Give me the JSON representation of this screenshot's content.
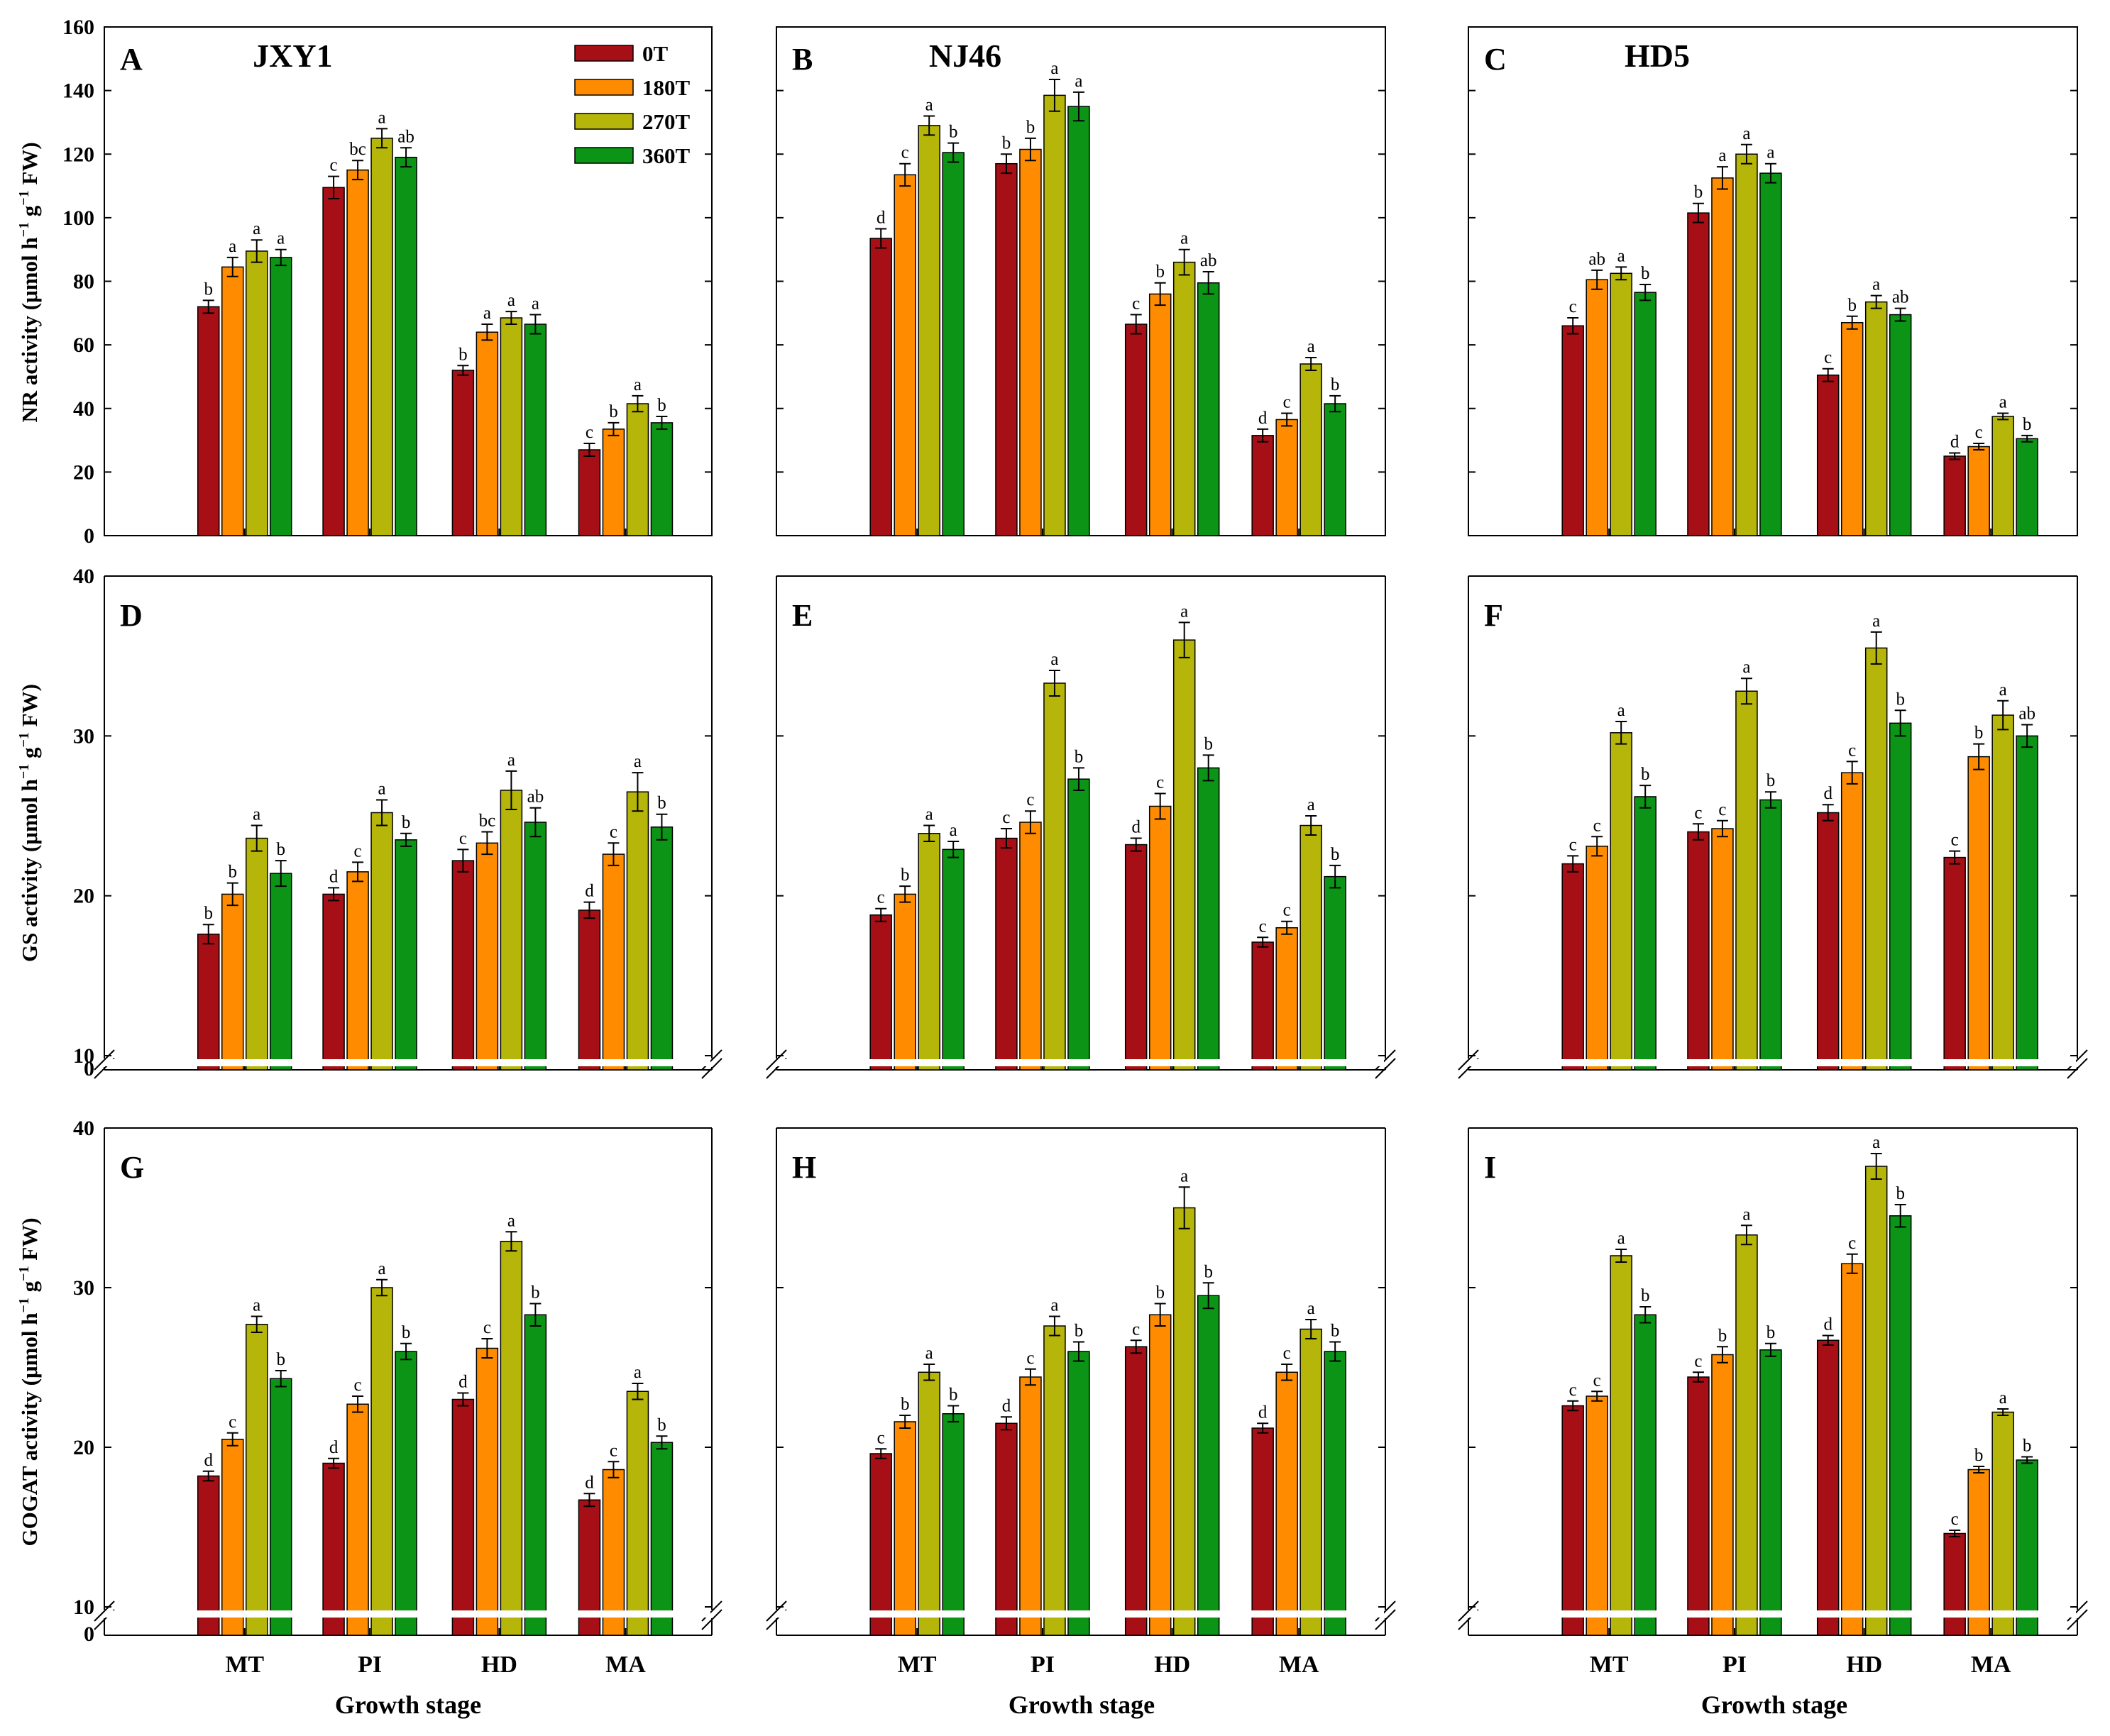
{
  "legend": [
    {
      "label": "0T",
      "color": "#a50f15"
    },
    {
      "label": "180T",
      "color": "#ff8c00"
    },
    {
      "label": "270T",
      "color": "#b5b50a"
    },
    {
      "label": "360T",
      "color": "#0c9416"
    }
  ],
  "categories": [
    "MT",
    "PI",
    "HD",
    "MA"
  ],
  "xlabel": "Growth stage",
  "row_ylabels": [
    {
      "pre": "NR activity (μmol h",
      "mid": " g",
      "post": " FW)"
    },
    {
      "pre": "GS activity (μmol h",
      "mid": " g",
      "post": " FW)"
    },
    {
      "pre": "GOGAT activity (μmol h",
      "mid": " g",
      "post": " FW)"
    }
  ],
  "superscript": "−1",
  "chart_data": [
    {
      "panel": "A",
      "title": "JXY1",
      "type": "bar",
      "ylim": [
        0,
        160
      ],
      "yticks": [
        "0",
        "20",
        "40",
        "60",
        "80",
        "100",
        "120",
        "140",
        "160"
      ],
      "series": [
        {
          "name": "0T",
          "values": [
            72,
            109.5,
            52,
            27
          ],
          "err": [
            2,
            3.5,
            1.5,
            2
          ],
          "letters": [
            "b",
            "c",
            "b",
            "c"
          ]
        },
        {
          "name": "180T",
          "values": [
            84.5,
            115,
            64,
            33.5
          ],
          "err": [
            3,
            3,
            2.5,
            2
          ],
          "letters": [
            "a",
            "bc",
            "a",
            "b"
          ]
        },
        {
          "name": "270T",
          "values": [
            89.5,
            125,
            68.5,
            41.5
          ],
          "err": [
            3.5,
            3,
            2,
            2.5
          ],
          "letters": [
            "a",
            "a",
            "a",
            "a"
          ]
        },
        {
          "name": "360T",
          "values": [
            87.5,
            119,
            66.5,
            35.5
          ],
          "err": [
            2.5,
            3,
            3,
            2
          ],
          "letters": [
            "a",
            "ab",
            "a",
            "b"
          ]
        }
      ]
    },
    {
      "panel": "B",
      "title": "NJ46",
      "type": "bar",
      "ylim": [
        0,
        160
      ],
      "yticks": [],
      "series": [
        {
          "name": "0T",
          "values": [
            93.5,
            117,
            66.5,
            31.5
          ],
          "err": [
            3,
            3,
            3,
            2
          ],
          "letters": [
            "d",
            "b",
            "c",
            "d"
          ]
        },
        {
          "name": "180T",
          "values": [
            113.5,
            121.5,
            76,
            36.5
          ],
          "err": [
            3.5,
            3.5,
            3.5,
            2
          ],
          "letters": [
            "c",
            "b",
            "b",
            "c"
          ]
        },
        {
          "name": "270T",
          "values": [
            129,
            138.5,
            86,
            54
          ],
          "err": [
            3,
            5,
            4,
            2
          ],
          "letters": [
            "a",
            "a",
            "a",
            "a"
          ]
        },
        {
          "name": "360T",
          "values": [
            120.5,
            135,
            79.5,
            41.5
          ],
          "err": [
            3,
            4.5,
            3.5,
            2.5
          ],
          "letters": [
            "b",
            "a",
            "ab",
            "b"
          ]
        }
      ]
    },
    {
      "panel": "C",
      "title": "HD5",
      "type": "bar",
      "ylim": [
        0,
        160
      ],
      "yticks": [],
      "series": [
        {
          "name": "0T",
          "values": [
            66,
            101.5,
            50.5,
            25
          ],
          "err": [
            2.5,
            3,
            2,
            1
          ],
          "letters": [
            "c",
            "b",
            "c",
            "d"
          ]
        },
        {
          "name": "180T",
          "values": [
            80.5,
            112.5,
            67,
            28
          ],
          "err": [
            3,
            3.5,
            2,
            1
          ],
          "letters": [
            "ab",
            "a",
            "b",
            "c"
          ]
        },
        {
          "name": "270T",
          "values": [
            82.5,
            120,
            73.5,
            37.5
          ],
          "err": [
            2,
            3,
            2,
            1
          ],
          "letters": [
            "a",
            "a",
            "a",
            "a"
          ]
        },
        {
          "name": "360T",
          "values": [
            76.5,
            114,
            69.5,
            30.5
          ],
          "err": [
            2.5,
            3,
            2,
            1
          ],
          "letters": [
            "b",
            "a",
            "ab",
            "b"
          ]
        }
      ]
    },
    {
      "panel": "D",
      "title": "",
      "type": "bar",
      "ylim": [
        10,
        40
      ],
      "yticks": [
        "10",
        "20",
        "30",
        "40"
      ],
      "zero_label": "0",
      "series": [
        {
          "name": "0T",
          "values": [
            17.6,
            20.1,
            22.2,
            19.1
          ],
          "err": [
            0.6,
            0.4,
            0.7,
            0.5
          ],
          "letters": [
            "b",
            "d",
            "c",
            "d"
          ]
        },
        {
          "name": "180T",
          "values": [
            20.1,
            21.5,
            23.3,
            22.6
          ],
          "err": [
            0.7,
            0.6,
            0.7,
            0.7
          ],
          "letters": [
            "b",
            "c",
            "bc",
            "c"
          ]
        },
        {
          "name": "270T",
          "values": [
            23.6,
            25.2,
            26.6,
            26.5
          ],
          "err": [
            0.8,
            0.8,
            1.2,
            1.2
          ],
          "letters": [
            "a",
            "a",
            "a",
            "a"
          ]
        },
        {
          "name": "360T",
          "values": [
            21.4,
            23.5,
            24.6,
            24.3
          ],
          "err": [
            0.8,
            0.4,
            0.9,
            0.8
          ],
          "letters": [
            "b",
            "b",
            "ab",
            "b"
          ]
        }
      ]
    },
    {
      "panel": "E",
      "title": "",
      "type": "bar",
      "ylim": [
        10,
        40
      ],
      "yticks": [],
      "series": [
        {
          "name": "0T",
          "values": [
            18.8,
            23.6,
            23.2,
            17.1
          ],
          "err": [
            0.4,
            0.6,
            0.4,
            0.3
          ],
          "letters": [
            "c",
            "c",
            "d",
            "c"
          ]
        },
        {
          "name": "180T",
          "values": [
            20.1,
            24.6,
            25.6,
            18.0
          ],
          "err": [
            0.5,
            0.7,
            0.8,
            0.4
          ],
          "letters": [
            "b",
            "c",
            "c",
            "c"
          ]
        },
        {
          "name": "270T",
          "values": [
            23.9,
            33.3,
            36.0,
            24.4
          ],
          "err": [
            0.5,
            0.8,
            1.1,
            0.6
          ],
          "letters": [
            "a",
            "a",
            "a",
            "a"
          ]
        },
        {
          "name": "360T",
          "values": [
            22.9,
            27.3,
            28.0,
            21.2
          ],
          "err": [
            0.5,
            0.7,
            0.8,
            0.7
          ],
          "letters": [
            "a",
            "b",
            "b",
            "b"
          ]
        }
      ]
    },
    {
      "panel": "F",
      "title": "",
      "type": "bar",
      "ylim": [
        10,
        40
      ],
      "yticks": [],
      "series": [
        {
          "name": "0T",
          "values": [
            22.0,
            24.0,
            25.2,
            22.4
          ],
          "err": [
            0.5,
            0.5,
            0.5,
            0.4
          ],
          "letters": [
            "c",
            "c",
            "d",
            "c"
          ]
        },
        {
          "name": "180T",
          "values": [
            23.1,
            24.2,
            27.7,
            28.7
          ],
          "err": [
            0.6,
            0.5,
            0.7,
            0.8
          ],
          "letters": [
            "c",
            "c",
            "c",
            "b"
          ]
        },
        {
          "name": "270T",
          "values": [
            30.2,
            32.8,
            35.5,
            31.3
          ],
          "err": [
            0.7,
            0.8,
            1.0,
            0.9
          ],
          "letters": [
            "a",
            "a",
            "a",
            "a"
          ]
        },
        {
          "name": "360T",
          "values": [
            26.2,
            26.0,
            30.8,
            30.0
          ],
          "err": [
            0.7,
            0.5,
            0.8,
            0.7
          ],
          "letters": [
            "b",
            "b",
            "b",
            "ab"
          ]
        }
      ]
    },
    {
      "panel": "G",
      "title": "",
      "type": "bar",
      "ylim": [
        10,
        40
      ],
      "yticks": [
        "10",
        "20",
        "30",
        "40"
      ],
      "zero_label": "0",
      "series": [
        {
          "name": "0T",
          "values": [
            18.2,
            19.0,
            23.0,
            16.7
          ],
          "err": [
            0.3,
            0.3,
            0.4,
            0.4
          ],
          "letters": [
            "d",
            "d",
            "d",
            "d"
          ]
        },
        {
          "name": "180T",
          "values": [
            20.5,
            22.7,
            26.2,
            18.6
          ],
          "err": [
            0.4,
            0.5,
            0.6,
            0.5
          ],
          "letters": [
            "c",
            "c",
            "c",
            "c"
          ]
        },
        {
          "name": "270T",
          "values": [
            27.7,
            30.0,
            32.9,
            23.5
          ],
          "err": [
            0.5,
            0.5,
            0.6,
            0.5
          ],
          "letters": [
            "a",
            "a",
            "a",
            "a"
          ]
        },
        {
          "name": "360T",
          "values": [
            24.3,
            26.0,
            28.3,
            20.3
          ],
          "err": [
            0.5,
            0.5,
            0.7,
            0.4
          ],
          "letters": [
            "b",
            "b",
            "b",
            "b"
          ]
        }
      ]
    },
    {
      "panel": "H",
      "title": "",
      "type": "bar",
      "ylim": [
        10,
        40
      ],
      "yticks": [],
      "series": [
        {
          "name": "0T",
          "values": [
            19.6,
            21.5,
            26.3,
            21.2
          ],
          "err": [
            0.3,
            0.4,
            0.4,
            0.3
          ],
          "letters": [
            "c",
            "d",
            "c",
            "d"
          ]
        },
        {
          "name": "180T",
          "values": [
            21.6,
            24.4,
            28.3,
            24.7
          ],
          "err": [
            0.4,
            0.5,
            0.7,
            0.5
          ],
          "letters": [
            "b",
            "c",
            "b",
            "c"
          ]
        },
        {
          "name": "270T",
          "values": [
            24.7,
            27.6,
            35.0,
            27.4
          ],
          "err": [
            0.5,
            0.6,
            1.3,
            0.6
          ],
          "letters": [
            "a",
            "a",
            "a",
            "a"
          ]
        },
        {
          "name": "360T",
          "values": [
            22.1,
            26.0,
            29.5,
            26.0
          ],
          "err": [
            0.5,
            0.6,
            0.8,
            0.6
          ],
          "letters": [
            "b",
            "b",
            "b",
            "b"
          ]
        }
      ]
    },
    {
      "panel": "I",
      "title": "",
      "type": "bar",
      "ylim": [
        10,
        40
      ],
      "yticks": [],
      "series": [
        {
          "name": "0T",
          "values": [
            22.6,
            24.4,
            26.7,
            14.6
          ],
          "err": [
            0.3,
            0.3,
            0.3,
            0.2
          ],
          "letters": [
            "c",
            "c",
            "d",
            "c"
          ]
        },
        {
          "name": "180T",
          "values": [
            23.2,
            25.8,
            31.5,
            18.6
          ],
          "err": [
            0.3,
            0.5,
            0.6,
            0.2
          ],
          "letters": [
            "c",
            "b",
            "c",
            "b"
          ]
        },
        {
          "name": "270T",
          "values": [
            32.0,
            33.3,
            37.6,
            22.2
          ],
          "err": [
            0.4,
            0.6,
            0.8,
            0.2
          ],
          "letters": [
            "a",
            "a",
            "a",
            "a"
          ]
        },
        {
          "name": "360T",
          "values": [
            28.3,
            26.1,
            34.5,
            19.2
          ],
          "err": [
            0.5,
            0.4,
            0.7,
            0.2
          ],
          "letters": [
            "b",
            "b",
            "b",
            "b"
          ]
        }
      ]
    }
  ]
}
